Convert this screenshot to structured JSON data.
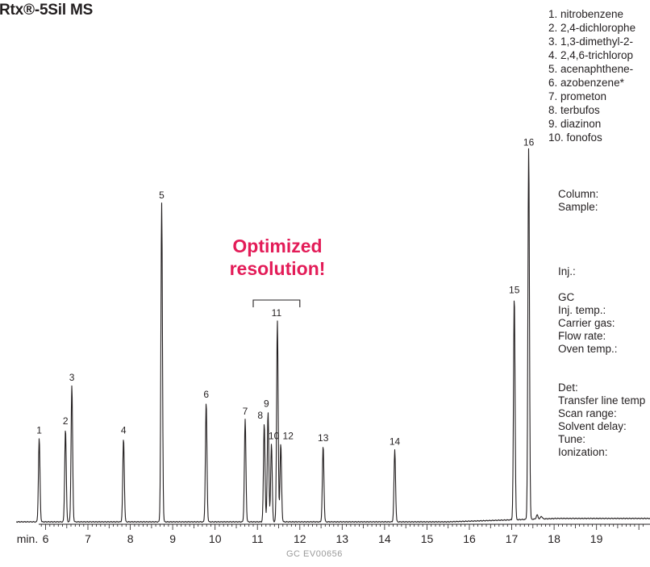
{
  "title": "Rtx®-5Sil MS",
  "callout": [
    "Optimized",
    "resolution!"
  ],
  "figure_code": "GC  EV00656",
  "peak_list": [
    "1. nitrobenzene",
    "2. 2,4-dichlorophe",
    "3. 1,3-dimethyl-2-",
    "4. 2,4,6-trichlorop",
    "5. acenaphthene-",
    "6. azobenzene*",
    "7. prometon",
    "8. terbufos",
    "9. diazinon",
    "10. fonofos"
  ],
  "conditions": [
    "Column:",
    "Sample:",
    "",
    "",
    "",
    "",
    "Inj.:",
    "",
    "GC",
    "Inj. temp.:",
    "Carrier gas:",
    "Flow rate:",
    "Oven temp.:",
    "",
    "",
    "Det:",
    "Transfer line temp",
    "Scan range:",
    "Solvent delay:",
    "Tune:",
    "Ionization:"
  ],
  "colors": {
    "trace": "#231f20",
    "callout": "#e31c58",
    "code": "#9a9a9a"
  },
  "chart_data": {
    "type": "line",
    "xlabel": "min.",
    "x_ticks": [
      6,
      7,
      8,
      9,
      10,
      11,
      12,
      13,
      14,
      15,
      16,
      17,
      18,
      19
    ],
    "xlim": [
      5.77,
      20.2
    ],
    "ylim": [
      0,
      100
    ],
    "grid": false,
    "legend": "none",
    "peaks": [
      {
        "label": "1",
        "rt": 5.85,
        "height": 22
      },
      {
        "label": "2",
        "rt": 6.47,
        "height": 24.5
      },
      {
        "label": "3",
        "rt": 6.62,
        "height": 36
      },
      {
        "label": "4",
        "rt": 7.84,
        "height": 22
      },
      {
        "label": "5",
        "rt": 8.74,
        "height": 84
      },
      {
        "label": "6",
        "rt": 9.79,
        "height": 31.5
      },
      {
        "label": "7",
        "rt": 10.71,
        "height": 27
      },
      {
        "label": "8",
        "rt": 11.16,
        "height": 26
      },
      {
        "label": "9",
        "rt": 11.25,
        "height": 29
      },
      {
        "label": "10",
        "rt": 11.33,
        "height": 20.5
      },
      {
        "label": "11",
        "rt": 11.47,
        "height": 53
      },
      {
        "label": "12",
        "rt": 11.55,
        "height": 20.5
      },
      {
        "label": "13",
        "rt": 12.55,
        "height": 20
      },
      {
        "label": "14",
        "rt": 14.24,
        "height": 19
      },
      {
        "label": "15",
        "rt": 17.06,
        "height": 59
      },
      {
        "label": "16",
        "rt": 17.4,
        "height": 98
      }
    ],
    "bracket": {
      "x_start": 10.9,
      "x_end": 12.0
    }
  }
}
